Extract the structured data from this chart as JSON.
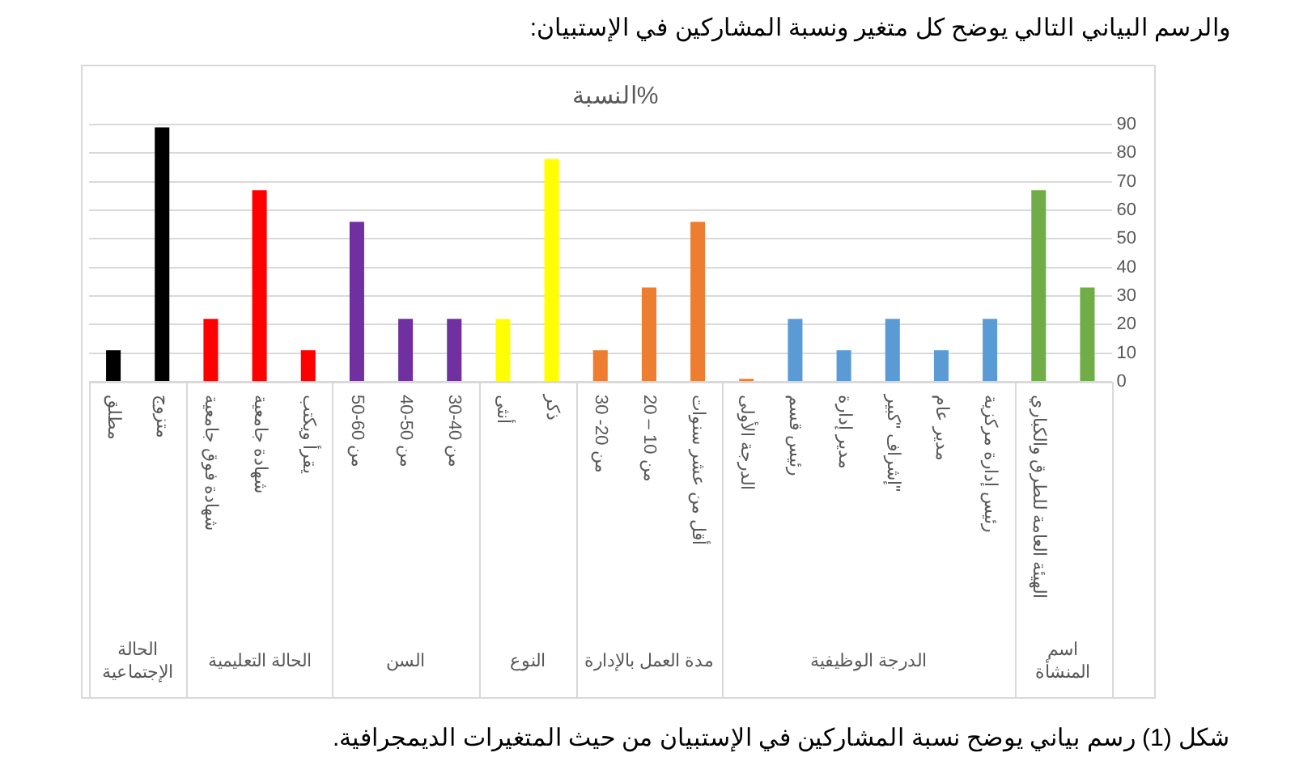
{
  "chart_data": {
    "type": "bar",
    "title": "النسبة%",
    "categories": [
      "مطلق",
      "متزوج",
      "شهادة فوق جامعية",
      "شهادة جامعية",
      "يقرأ ويكتب",
      "من 60-50",
      "من 50-40",
      "من 40-30",
      "أنثى",
      "ذكر",
      "من 20- 30",
      "من 10 – 20",
      "أقل من عشر سنوات",
      "الدرجة الأولى",
      "رئيس قسم",
      "مدير إدارة",
      "إشراف \"كبير\"",
      "مدير عام",
      "رئيس إدارة مركزية",
      "الهيئة العامة للطرق والكباري",
      null
    ],
    "series": [
      {
        "color": "#000000",
        "values": [
          11,
          89,
          null,
          null,
          null,
          null,
          null,
          null,
          null,
          null,
          null,
          null,
          null,
          null,
          null,
          null,
          null,
          null,
          null,
          null,
          null
        ]
      },
      {
        "color": "#ff0000",
        "values": [
          null,
          null,
          22,
          67,
          11,
          null,
          null,
          null,
          null,
          null,
          null,
          null,
          null,
          null,
          null,
          null,
          null,
          null,
          null,
          null,
          null
        ]
      },
      {
        "color": "#7030a0",
        "values": [
          null,
          null,
          null,
          null,
          null,
          56,
          22,
          22,
          null,
          null,
          null,
          null,
          null,
          null,
          null,
          null,
          null,
          null,
          null,
          null,
          null
        ]
      },
      {
        "color": "#ffff00",
        "values": [
          null,
          null,
          null,
          null,
          null,
          null,
          null,
          null,
          22,
          78,
          null,
          null,
          null,
          null,
          null,
          null,
          null,
          null,
          null,
          null,
          null
        ]
      },
      {
        "color": "#ed7d31",
        "values": [
          null,
          null,
          null,
          null,
          null,
          null,
          null,
          null,
          null,
          null,
          11,
          33,
          56,
          null,
          null,
          null,
          null,
          null,
          null,
          null,
          null
        ]
      },
      {
        "color": "#5b9bd5",
        "colors": [
          null,
          null,
          null,
          null,
          null,
          null,
          null,
          null,
          null,
          null,
          null,
          null,
          null,
          "#ed7d31",
          "#5b9bd5",
          "#5b9bd5",
          "#5b9bd5",
          "#5b9bd5",
          "#5b9bd5",
          null,
          null
        ],
        "values": [
          null,
          null,
          null,
          null,
          null,
          null,
          null,
          null,
          null,
          null,
          null,
          null,
          null,
          1,
          22,
          11,
          22,
          11,
          22,
          null,
          null
        ]
      },
      {
        "color": "#70ad47",
        "values": [
          null,
          null,
          null,
          null,
          null,
          null,
          null,
          null,
          null,
          null,
          null,
          null,
          null,
          null,
          null,
          null,
          null,
          null,
          null,
          67,
          33
        ]
      }
    ],
    "ylim": [
      0,
      90
    ],
    "yticks": [
      0,
      10,
      20,
      30,
      40,
      50,
      60,
      70,
      80,
      90
    ],
    "grid": "y",
    "annotations": [
      "والرسم البياني التالي يوضح كل متغير ونسبة المشاركين في الإستبيان:",
      "شكل (1)  رسم بياني يوضح نسبة المشاركين في الإستبيان من حيث المتغيرات الديمجرافية.",
      "الحالة الإجتماعية",
      "الحالة التعليمية",
      "السن",
      "النوع",
      "مدة العمل بالإدارة",
      "الدرجة الوظيفية",
      "اسم المنشأة"
    ]
  }
}
